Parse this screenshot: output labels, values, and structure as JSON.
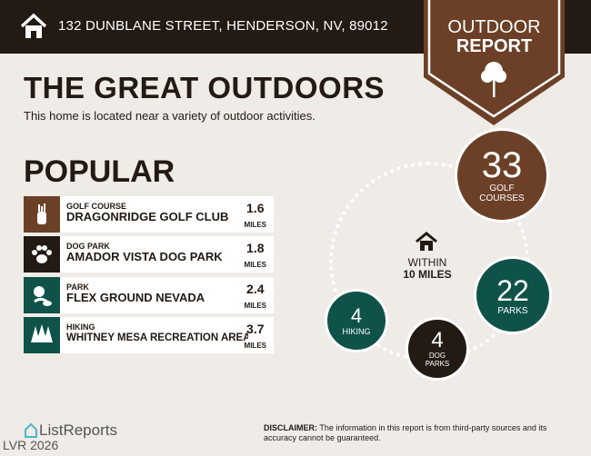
{
  "header": {
    "address": "132 DUNBLANE STREET, HENDERSON, NV, 89012",
    "icon": "home-icon"
  },
  "badge": {
    "line1": "OUTDOOR",
    "line2": "REPORT",
    "icon": "tree-icon"
  },
  "title": "THE GREAT OUTDOORS",
  "subtitle": "This home is located near a variety of outdoor activities.",
  "popular": {
    "heading": "POPULAR",
    "items": [
      {
        "category": "GOLF COURSE",
        "name": "DRAGONRIDGE GOLF CLUB",
        "distance": "1.6",
        "unit": "MILES",
        "icon": "golf-bag-icon",
        "color": "#6c4027"
      },
      {
        "category": "DOG PARK",
        "name": "AMADOR VISTA DOG PARK",
        "distance": "1.8",
        "unit": "MILES",
        "icon": "paw-icon",
        "color": "#231a14"
      },
      {
        "category": "PARK",
        "name": "FLEX GROUND NEVADA",
        "distance": "2.4",
        "unit": "MILES",
        "icon": "park-icon",
        "color": "#0f524a"
      },
      {
        "category": "HIKING",
        "name": "WHITNEY MESA RECREATION AREA",
        "distance": "3.7",
        "unit": "MILES",
        "icon": "pine-trees-icon",
        "color": "#0f524a"
      }
    ]
  },
  "radius": {
    "line1": "WITHIN",
    "line2": "10 MILES"
  },
  "counts": [
    {
      "value": "33",
      "label": "GOLF COURSES",
      "color": "#6c4027"
    },
    {
      "value": "22",
      "label": "PARKS",
      "color": "#0f524a"
    },
    {
      "value": "4",
      "label": "DOG PARKS",
      "color": "#231a14"
    },
    {
      "value": "4",
      "label": "HIKING",
      "color": "#0f524a"
    }
  ],
  "footer": {
    "logo": "ListReports",
    "watermark": "LVR 2026",
    "disclaimer_label": "DISCLAIMER:",
    "disclaimer": " The information in this report is from third-party sources and its accuracy cannot be guaranteed."
  }
}
